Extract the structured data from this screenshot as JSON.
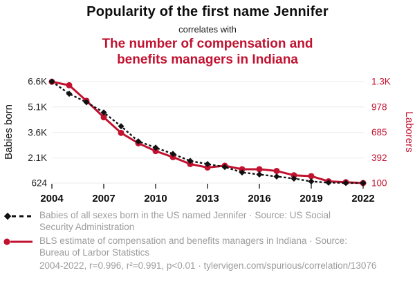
{
  "header": {
    "title": "Popularity of the first name Jennifer",
    "connector": "correlates with",
    "subtitle": "The number of compensation and benefits managers in Indiana"
  },
  "chart_data": {
    "type": "line",
    "x": [
      2004,
      2005,
      2006,
      2007,
      2008,
      2009,
      2010,
      2011,
      2012,
      2013,
      2014,
      2015,
      2016,
      2017,
      2018,
      2019,
      2020,
      2021,
      2022
    ],
    "x_ticks": [
      2004,
      2007,
      2010,
      2013,
      2016,
      2019,
      2022
    ],
    "series": [
      {
        "name": "Babies of all sexes born in the US named Jennifer",
        "axis": "left",
        "color": "#111111",
        "style": "dashed",
        "marker": "diamond",
        "values": [
          6600,
          5880,
          5380,
          4780,
          3970,
          3080,
          2710,
          2340,
          1930,
          1740,
          1570,
          1250,
          1130,
          1010,
          890,
          720,
          650,
          630,
          624
        ]
      },
      {
        "name": "BLS estimate of compensation and benefits managers in Indiana",
        "axis": "right",
        "color": "#c11230",
        "style": "solid",
        "marker": "circle",
        "values": [
          1270,
          1230,
          1050,
          860,
          680,
          560,
          470,
          400,
          320,
          280,
          300,
          260,
          260,
          240,
          190,
          180,
          120,
          110,
          100
        ]
      }
    ],
    "left_axis": {
      "label": "Babies born",
      "ticks": [
        "6.6K",
        "5.1K",
        "3.6K",
        "2.1K",
        "624"
      ],
      "tick_values": [
        6600,
        5100,
        3600,
        2100,
        624
      ],
      "min": 624,
      "max": 6600
    },
    "right_axis": {
      "label": "Laborers",
      "ticks": [
        "1.3K",
        "978",
        "685",
        "392",
        "100"
      ],
      "tick_values": [
        1273,
        978,
        685,
        392,
        100
      ],
      "min": 100,
      "max": 1273
    },
    "grid": true,
    "legend_position": "bottom"
  },
  "legend": {
    "items": [
      {
        "text": "Babies of all sexes born in the US named Jennifer · Source: US Social Security Administration"
      },
      {
        "text": "BLS estimate of compensation and benefits managers in Indiana · Source: Bureau of Larbor Statistics"
      }
    ],
    "footer": "2004-2022, r=0.996, r²=0.991, p<0.01 · tylervigen.com/spurious/correlation/13076"
  },
  "colors": {
    "accent_red": "#c11230",
    "text_gray": "#9c9c9c",
    "grid_gray": "#ebebeb",
    "ink_black": "#0d0d0d"
  }
}
